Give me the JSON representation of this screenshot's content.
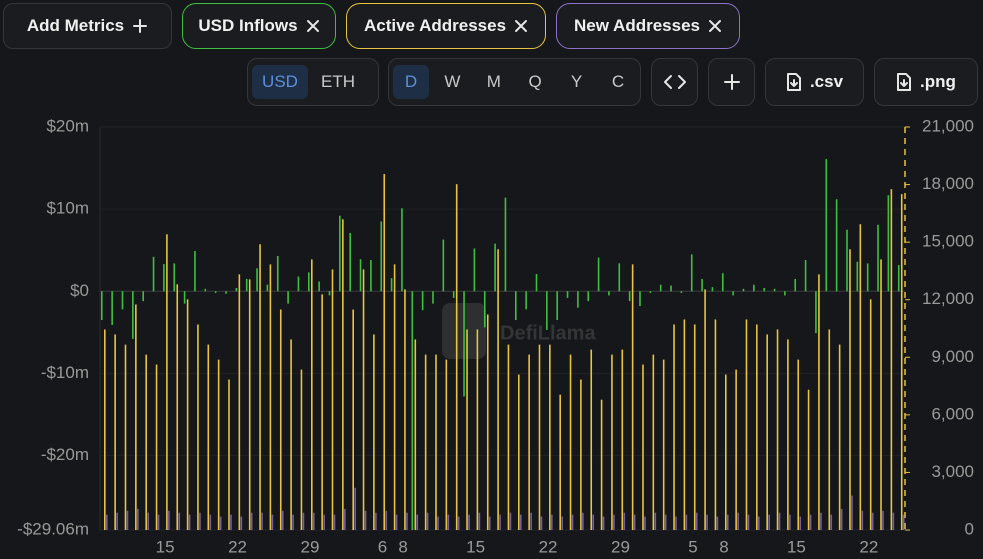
{
  "toolbar": {
    "add_metrics": "Add Metrics",
    "currency": [
      "USD",
      "ETH"
    ],
    "currency_selected": 0,
    "periods": [
      "D",
      "W",
      "M",
      "Q",
      "Y",
      "C"
    ],
    "period_selected": 0,
    "exports": [
      ".csv",
      ".png"
    ]
  },
  "chart_data": {
    "type": "bar",
    "watermark": "DefiLlama",
    "categories": [
      null,
      null,
      null,
      null,
      null,
      null,
      "15",
      null,
      null,
      null,
      null,
      null,
      null,
      "22",
      null,
      null,
      null,
      null,
      null,
      null,
      "29",
      null,
      null,
      null,
      null,
      null,
      null,
      "6",
      null,
      "8",
      null,
      null,
      null,
      null,
      null,
      null,
      "15",
      null,
      null,
      null,
      null,
      null,
      null,
      "22",
      null,
      null,
      null,
      null,
      null,
      null,
      "29",
      null,
      null,
      null,
      null,
      null,
      null,
      "5",
      null,
      null,
      "8",
      null,
      null,
      null,
      null,
      null,
      null,
      "15",
      null,
      null,
      null,
      null,
      null,
      null,
      "22",
      null,
      null,
      null
    ],
    "ylim": [
      -29.06,
      20
    ],
    "yticks": [
      {
        "value": 20,
        "label": "$20m"
      },
      {
        "value": 10,
        "label": "$10m"
      },
      {
        "value": 0,
        "label": "$0"
      },
      {
        "value": -10,
        "label": "-$10m"
      },
      {
        "value": -20,
        "label": "-$20m"
      },
      {
        "value": -29.06,
        "label": "-$29.06m"
      }
    ],
    "y2lim": [
      0,
      21000
    ],
    "y2ticks": [
      {
        "value": 21000,
        "label": "21,000"
      },
      {
        "value": 18000,
        "label": "18,000"
      },
      {
        "value": 15000,
        "label": "15,000"
      },
      {
        "value": 12000,
        "label": "12,000"
      },
      {
        "value": 9000,
        "label": "9,000"
      },
      {
        "value": 6000,
        "label": "6,000"
      },
      {
        "value": 3000,
        "label": "3,000"
      },
      0
    ],
    "grid": true,
    "series": [
      {
        "name": "USD Inflows",
        "color": "#3fbf3f",
        "axis": "y",
        "values": [
          -3.5,
          -4.1,
          -2.2,
          -5.8,
          -1.2,
          4.2,
          3.3,
          3.4,
          -1.5,
          4.9,
          0.3,
          -0.2,
          -0.3,
          0.4,
          1.5,
          2.8,
          0.8,
          4.3,
          -1.5,
          1.8,
          2.3,
          1.2,
          -0.5,
          9.2,
          7.1,
          3.9,
          3.8,
          8.5,
          1.6,
          10.1,
          -29.06,
          -2.3,
          -1.5,
          6.3,
          -0.8,
          -12.8,
          5.2,
          -4.4,
          5.8,
          11.4,
          -3.5,
          -2.2,
          2.1,
          -4.7,
          -3.5,
          -0.8,
          -2.0,
          -1.2,
          4.1,
          -0.5,
          3.4,
          -1.2,
          -1.8,
          -0.2,
          0.8,
          0.7,
          -0.2,
          4.5,
          1.5,
          0.5,
          2.2,
          -0.5,
          0.3,
          0.8,
          0.4,
          0.3,
          -0.5,
          1.5,
          3.8,
          -5.1,
          16.1,
          11.2,
          7.5,
          3.6,
          3.4,
          8.1,
          11.7,
          3.2
        ]
      },
      {
        "name": "Active Addresses",
        "color": "#e8c440",
        "axis": "y2",
        "values": [
          10450,
          10190,
          9660,
          11750,
          9140,
          8620,
          15410,
          12800,
          12020,
          10710,
          9660,
          8880,
          7840,
          13320,
          13060,
          14890,
          13840,
          11490,
          9930,
          8360,
          14100,
          12280,
          13580,
          16190,
          11490,
          13580,
          10190,
          18550,
          13840,
          12540,
          9930,
          9140,
          9140,
          8880,
          18020,
          10450,
          10450,
          11230,
          14630,
          9660,
          8100,
          9140,
          9660,
          9660,
          7050,
          9140,
          7840,
          9400,
          6790,
          9140,
          9400,
          13840,
          8620,
          9140,
          8880,
          10710,
          10970,
          10710,
          12540,
          10970,
          8100,
          8360,
          10970,
          10710,
          10190,
          10450,
          9930,
          8880,
          7310,
          13320,
          10450,
          9660,
          14630,
          15930,
          12020,
          14100,
          17760,
          17500
        ]
      },
      {
        "name": "New Addresses",
        "color": "#8a72c8",
        "axis": "y2",
        "values": [
          800,
          900,
          1000,
          1100,
          900,
          800,
          1000,
          900,
          800,
          900,
          800,
          700,
          800,
          700,
          900,
          900,
          800,
          1000,
          800,
          900,
          900,
          800,
          800,
          1100,
          2200,
          1000,
          900,
          1000,
          800,
          900,
          800,
          900,
          700,
          800,
          700,
          800,
          900,
          700,
          800,
          900,
          800,
          900,
          700,
          800,
          700,
          800,
          900,
          800,
          700,
          800,
          900,
          800,
          700,
          900,
          800,
          700,
          800,
          900,
          800,
          700,
          800,
          900,
          800,
          700,
          800,
          900,
          800,
          700,
          800,
          900,
          800,
          1100,
          1800,
          1000,
          900,
          1000,
          900,
          800
        ]
      }
    ]
  }
}
